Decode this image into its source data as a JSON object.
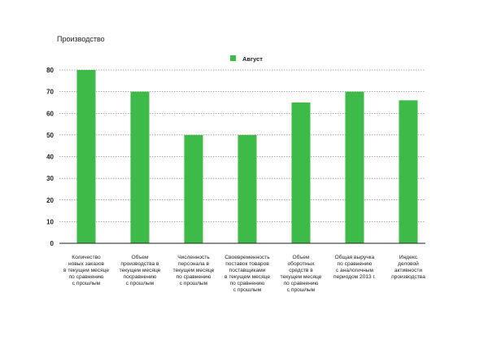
{
  "chart_data": {
    "type": "bar",
    "title": "Производство",
    "xlabel": "",
    "ylabel": "",
    "ylim": [
      0,
      80
    ],
    "yticks": [
      0,
      10,
      20,
      30,
      40,
      50,
      60,
      70,
      80
    ],
    "grid": "horizontal-dashed",
    "legend_position": "top-center",
    "series": [
      {
        "name": "Август",
        "color": "#3dba47",
        "values": [
          80,
          70,
          50,
          50,
          65,
          70,
          66
        ]
      }
    ],
    "categories": [
      [
        "Количество",
        "новых заказов",
        "в текущем месяце",
        "по сравнению",
        "с прошлым"
      ],
      [
        "Объем",
        "производства в",
        "текущем месяце",
        "посравнению",
        "с прошлым"
      ],
      [
        "Численность",
        "персонала в",
        "текущем месяце",
        "по сравнению",
        "с прошлым"
      ],
      [
        "Своевременность",
        "поставок товаров",
        "поставщиками",
        "в текущем месяце",
        "по сравнению",
        "с прошлым"
      ],
      [
        "Объем",
        "оборотных",
        "средств в",
        "текущем месяце",
        "по сравнению",
        "с прошлым"
      ],
      [
        "Общая выручка",
        "по сравнению",
        "с аналогичным",
        "периодом 2013 г."
      ],
      [
        "Индекс",
        "деловой",
        "активности",
        "производства"
      ]
    ]
  }
}
